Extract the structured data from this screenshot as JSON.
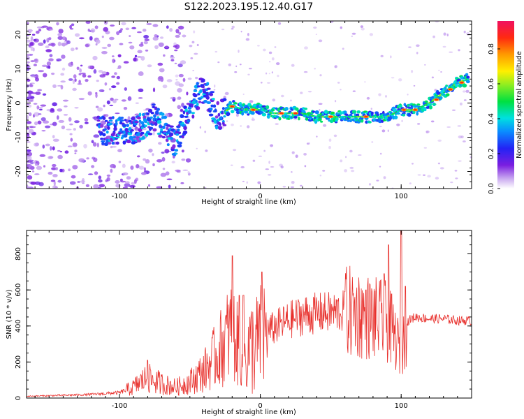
{
  "figure_title": "S122.2023.195.12.40.G17",
  "chart_data": [
    {
      "type": "heatmap",
      "title": "",
      "xlabel": "Height of straight line (km)",
      "ylabel": "Frequency (Hz)",
      "xlim": [
        -166,
        150
      ],
      "ylim": [
        -25,
        24
      ],
      "x_ticks": [
        -100,
        0,
        100
      ],
      "y_ticks": [
        20,
        10,
        0,
        -10,
        -20
      ],
      "colorbar": {
        "label": "Normalized spectral amplitude",
        "range": [
          0,
          0.96
        ],
        "ticks": [
          0.0,
          0.2,
          0.4,
          0.6,
          0.8
        ]
      },
      "ridge": {
        "description_points": [
          [
            -110,
            -8
          ],
          [
            -100,
            -8
          ],
          [
            -90,
            -8
          ],
          [
            -80,
            -6
          ],
          [
            -75,
            -4
          ],
          [
            -60,
            -12
          ],
          [
            -55,
            -6
          ],
          [
            -50,
            -2
          ],
          [
            -45,
            2
          ],
          [
            -40,
            4
          ],
          [
            -30,
            -4
          ],
          [
            -20,
            -1
          ],
          [
            -10,
            -2
          ],
          [
            0,
            -2
          ],
          [
            10,
            -3
          ],
          [
            20,
            -3
          ],
          [
            30,
            -3
          ],
          [
            40,
            -4
          ],
          [
            50,
            -4
          ],
          [
            60,
            -4
          ],
          [
            70,
            -4
          ],
          [
            80,
            -4
          ],
          [
            90,
            -4
          ],
          [
            100,
            -2
          ],
          [
            110,
            -2
          ],
          [
            120,
            0
          ],
          [
            130,
            3
          ],
          [
            140,
            6
          ],
          [
            148,
            7
          ]
        ],
        "peak_points": [
          [
            -20,
            -1
          ],
          [
            -5,
            -2
          ],
          [
            15,
            -3
          ],
          [
            25,
            -3
          ],
          [
            50,
            -4
          ],
          [
            75,
            -4
          ],
          [
            102,
            -2
          ],
          [
            110,
            -2
          ],
          [
            125,
            1
          ],
          [
            135,
            4
          ],
          [
            143,
            6
          ]
        ]
      }
    },
    {
      "type": "line",
      "title": "",
      "xlabel": "Height of straight line (km)",
      "ylabel": "SNR (10 * v/v)",
      "xlim": [
        -166,
        150
      ],
      "ylim": [
        0,
        930
      ],
      "x_ticks": [
        -100,
        0,
        100
      ],
      "y_ticks": [
        0,
        200,
        400,
        600,
        800
      ],
      "series": [
        {
          "color": "#e8302c",
          "envelope": {
            "x": [
              -166,
              -140,
              -120,
              -100,
              -90,
              -85,
              -80,
              -70,
              -60,
              -50,
              -40,
              -30,
              -25,
              -20,
              -15,
              -10,
              -5,
              -2,
              0,
              5,
              10,
              20,
              30,
              40,
              50,
              60,
              70,
              80,
              90,
              95,
              100,
              105,
              110,
              120,
              130,
              140,
              150
            ],
            "y": [
              10,
              15,
              20,
              30,
              60,
              90,
              110,
              80,
              60,
              90,
              150,
              250,
              320,
              380,
              260,
              240,
              290,
              300,
              330,
              370,
              390,
              430,
              460,
              470,
              475,
              480,
              470,
              440,
              420,
              350,
              250,
              430,
              450,
              440,
              440,
              430,
              430
            ]
          },
          "spikes": [
            [
              -80,
              210
            ],
            [
              -20,
              790
            ],
            [
              -15,
              570
            ],
            [
              -12,
              570
            ],
            [
              1,
              700
            ],
            [
              60,
              590
            ],
            [
              75,
              600
            ],
            [
              88,
              690
            ],
            [
              91,
              850
            ],
            [
              100,
              930
            ],
            [
              103,
              620
            ]
          ]
        }
      ]
    }
  ]
}
